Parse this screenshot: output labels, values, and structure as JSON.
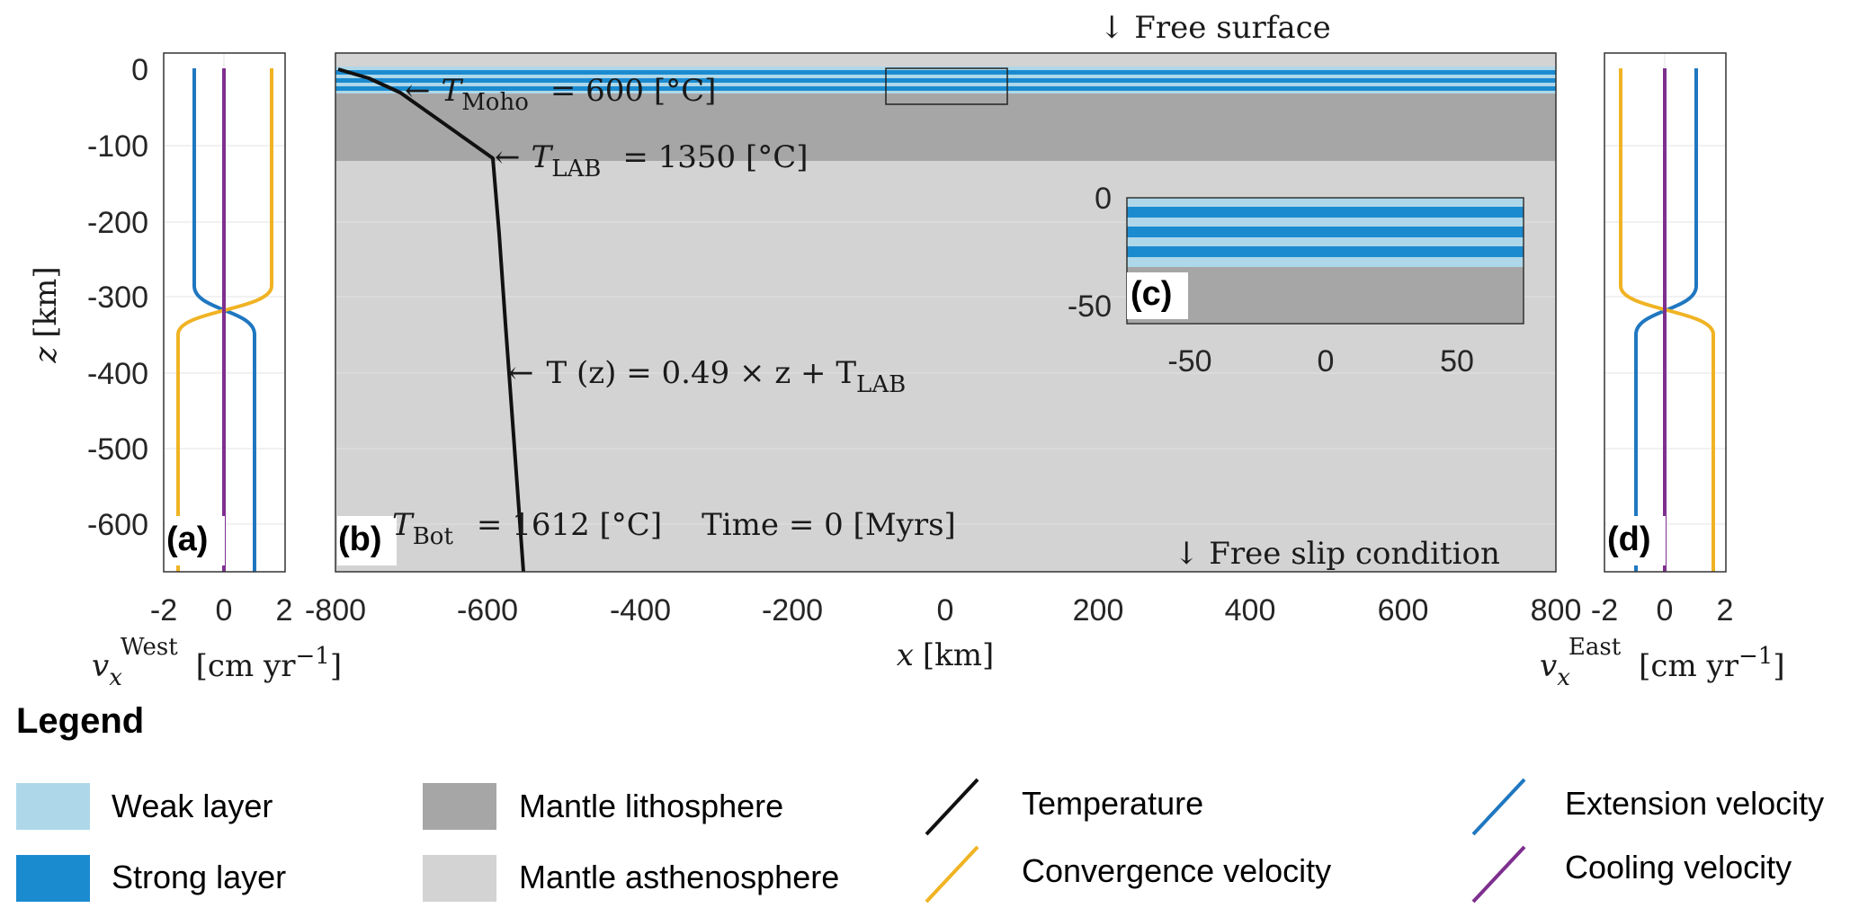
{
  "figure": {
    "top_annotation": "↓ Free surface",
    "bottom_annotation": "↓ Free slip condition",
    "panels": {
      "a": {
        "label": "(a)"
      },
      "b": {
        "label": "(b)"
      },
      "c": {
        "label": "(c)"
      },
      "d": {
        "label": "(d)"
      }
    },
    "axes": {
      "z_label_var": "z",
      "z_label_unit": "[km]",
      "x_label_var": "x",
      "x_label_unit": "[km]",
      "z_ticks": [
        "0",
        "-100",
        "-200",
        "-300",
        "-400",
        "-500",
        "-600"
      ],
      "x_ticks": [
        "-800",
        "-600",
        "-400",
        "-200",
        "0",
        "200",
        "400",
        "600",
        "800"
      ],
      "v_ticks": [
        "-2",
        "0",
        "2"
      ],
      "inset_z_ticks": [
        "0",
        "-50"
      ],
      "inset_x_ticks": [
        "-50",
        "0",
        "50"
      ],
      "west_label_var": "v",
      "west_label_sub": "x",
      "west_label_sup": "West",
      "west_label_unit": "[cm yr",
      "west_label_unit_sup": "−1",
      "west_label_unit_end": "]",
      "east_label_var": "v",
      "east_label_sub": "x",
      "east_label_sup": "East",
      "east_label_unit": "[cm yr",
      "east_label_unit_sup": "−1",
      "east_label_unit_end": "]"
    },
    "annotations": {
      "moho_T": "T",
      "moho_sub": "Moho",
      "moho_rest": "=  600 [°C]",
      "lab_T": "T",
      "lab_sub": "LAB",
      "lab_rest": "=  1350 [°C]",
      "tz_part1": "T (z)  =  0.49 × z  +  T",
      "tz_sub": "LAB",
      "bot_T": "T",
      "bot_sub": "Bot",
      "bot_rest": "=  1612 [°C]",
      "time_text": "Time = 0 [Myrs]"
    },
    "arrow_glyph": "←"
  },
  "legend": {
    "title": "Legend",
    "items": [
      {
        "label": "Weak layer",
        "color": "#aed8ea",
        "kind": "box"
      },
      {
        "label": "Strong layer",
        "color": "#1b8bd0",
        "kind": "box"
      },
      {
        "label": "Mantle lithosphere",
        "color": "#a6a6a6",
        "kind": "box"
      },
      {
        "label": "Mantle asthenosphere",
        "color": "#d3d3d3",
        "kind": "box"
      },
      {
        "label": "Temperature",
        "color": "#111111",
        "kind": "line"
      },
      {
        "label": "Convergence velocity",
        "color": "#f0b323",
        "kind": "line"
      },
      {
        "label": "Extension velocity",
        "color": "#1f77c0",
        "kind": "line"
      },
      {
        "label": "Cooling velocity",
        "color": "#7e2f8e",
        "kind": "line"
      }
    ]
  },
  "colors": {
    "weak": "#aed8ea",
    "strong": "#1b8bd0",
    "lithosphere": "#a6a6a6",
    "asthenosphere": "#d3d3d3",
    "temperature": "#111111",
    "convergence": "#f0b323",
    "extension": "#1f77c0",
    "cooling": "#7e2f8e"
  }
}
